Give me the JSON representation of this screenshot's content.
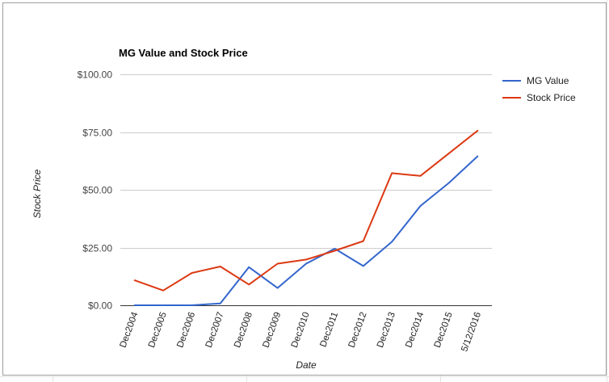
{
  "chart_data": {
    "type": "line",
    "title": "MG Value and Stock Price",
    "xlabel": "Date",
    "ylabel": "Stock Price",
    "categories": [
      "Dec2004",
      "Dec2005",
      "Dec2006",
      "Dec2007",
      "Dec2008",
      "Dec2009",
      "Dec2010",
      "Dec2011",
      "Dec2012",
      "Dec2013",
      "Dec2014",
      "Dec2015",
      "5/12/2016"
    ],
    "y_ticks": [
      "$0.00",
      "$25.00",
      "$50.00",
      "$75.00",
      "$100.00"
    ],
    "y_tick_values": [
      0,
      25,
      50,
      75,
      100
    ],
    "ylim": [
      0,
      100
    ],
    "grid": true,
    "legend_position": "right",
    "series": [
      {
        "name": "MG Value",
        "color": "#3366cc",
        "values": [
          0,
          0,
          0,
          0.8,
          16.5,
          7.5,
          18,
          24.5,
          17,
          27.5,
          43,
          53,
          64.5
        ]
      },
      {
        "name": "Stock Price",
        "color": "#dc3912",
        "values": [
          10.8,
          6.4,
          14,
          16.8,
          9,
          18,
          19.8,
          23.6,
          27.8,
          57.2,
          56,
          65.8,
          75.6
        ]
      }
    ]
  }
}
